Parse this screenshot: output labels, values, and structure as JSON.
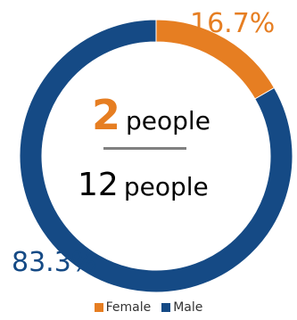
{
  "chart_data": {
    "type": "pie",
    "variant": "donut",
    "categories": [
      "Female",
      "Male"
    ],
    "values": [
      2,
      10
    ],
    "percent_labels": [
      "16.7%",
      "83.3%"
    ],
    "colors": [
      "#e67e22",
      "#154a85"
    ],
    "legend_position": "bottom",
    "center_text": {
      "count": "2",
      "count_unit": "people",
      "total": "12",
      "total_unit": "people"
    }
  }
}
